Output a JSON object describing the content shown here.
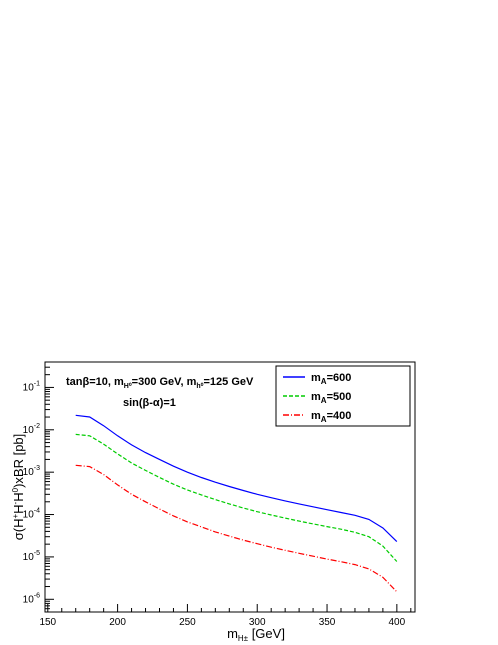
{
  "chart_data": {
    "type": "line",
    "xlabel_main": "m",
    "xlabel_sub": "H±",
    "xlabel_unit": " [GeV]",
    "ylabel": "σ(H⁺H⁻H⁰)xBR [pb]",
    "xlim": [
      148,
      413
    ],
    "ylim_log10": [
      -6.3,
      -0.4
    ],
    "log_y": true,
    "x_ticks": [
      150,
      200,
      250,
      300,
      350,
      400
    ],
    "y_tick_exponents": [
      -6,
      -5,
      -4,
      -3,
      -2,
      -1
    ],
    "annotations": [
      "tanβ=10, mH0=300 GeV, mh0=125 GeV",
      "sin(β-α)=1"
    ],
    "legend_position": "top-right",
    "series": [
      {
        "name": "mA=600",
        "color": "#0000ff",
        "dash": "solid",
        "x": [
          170,
          180,
          190,
          200,
          210,
          220,
          230,
          240,
          250,
          260,
          270,
          280,
          290,
          300,
          310,
          320,
          330,
          340,
          350,
          360,
          370,
          380,
          390,
          400
        ],
        "y": [
          0.022,
          0.02,
          0.0125,
          0.0072,
          0.0044,
          0.0029,
          0.002,
          0.00138,
          0.001,
          0.00075,
          0.00058,
          0.00046,
          0.00037,
          0.0003,
          0.00025,
          0.00021,
          0.000178,
          0.000152,
          0.00013,
          0.000112,
          9.6e-05,
          7.7e-05,
          4.8e-05,
          2.3e-05
        ]
      },
      {
        "name": "mA=500",
        "color": "#00cc00",
        "dash": "dashed",
        "x": [
          170,
          180,
          190,
          200,
          210,
          220,
          230,
          240,
          250,
          260,
          270,
          280,
          290,
          300,
          310,
          320,
          330,
          340,
          350,
          360,
          370,
          380,
          390,
          400
        ],
        "y": [
          0.0078,
          0.0072,
          0.0046,
          0.0027,
          0.00165,
          0.0011,
          0.00075,
          0.00052,
          0.00038,
          0.00029,
          0.000225,
          0.000178,
          0.000143,
          0.000117,
          9.75e-05,
          8.25e-05,
          7e-05,
          6e-05,
          5.2e-05,
          4.5e-05,
          3.8e-05,
          3e-05,
          1.8e-05,
          7.8e-06
        ]
      },
      {
        "name": "mA=400",
        "color": "#ff0000",
        "dash": "dashdot",
        "x": [
          170,
          180,
          190,
          200,
          210,
          220,
          230,
          240,
          250,
          260,
          270,
          280,
          290,
          300,
          310,
          320,
          330,
          340,
          350,
          360,
          370,
          380,
          390,
          400
        ],
        "y": [
          0.00145,
          0.00135,
          0.00088,
          0.0005,
          0.0003,
          0.0002,
          0.000135,
          9.3e-05,
          6.7e-05,
          5.1e-05,
          3.9e-05,
          3.1e-05,
          2.5e-05,
          2.05e-05,
          1.7e-05,
          1.43e-05,
          1.22e-05,
          1.04e-05,
          8.9e-06,
          7.7e-06,
          6.6e-06,
          5.2e-06,
          3.3e-06,
          1.5e-06
        ]
      }
    ]
  }
}
